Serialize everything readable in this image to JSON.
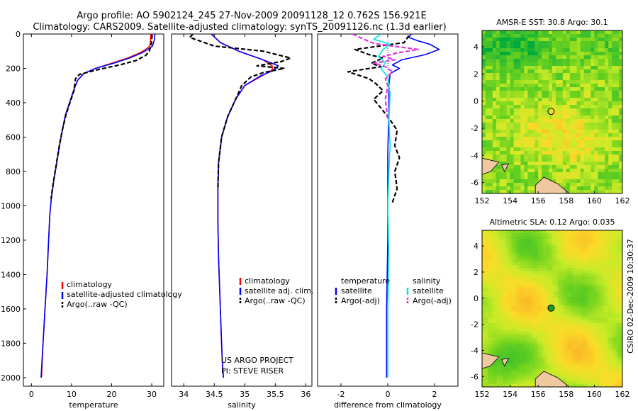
{
  "header": {
    "line1": "Argo profile: AO 5902124_245 27-Nov-2009 20091128_12 0.762S 156.921E",
    "line2": "Climatology: CARS2009. Satellite-adjusted climatology: synTS_20091126.nc (1.3d earlier)"
  },
  "side_label": "CSIRO 02-Dec-2009 10:30:37",
  "colors": {
    "clim": "#ff0000",
    "sat": "#0000ff",
    "argo": "#000000",
    "sat_cyan": "#00e5e5",
    "argo_adj": "#e033e0",
    "land": "#f0c8a0",
    "float_marker": "#1aa01a"
  },
  "chart_data": [
    {
      "type": "line",
      "id": "temperature",
      "title": "",
      "xlabel": "temperature",
      "ylabel": "",
      "xlim": [
        -2,
        33
      ],
      "ylim": [
        0,
        2050
      ],
      "yreverse": true,
      "xticks": [
        0,
        10,
        20,
        30
      ],
      "yticks": [
        0,
        200,
        400,
        600,
        800,
        1000,
        1200,
        1400,
        1600,
        1800,
        2000
      ],
      "legend": {
        "position": "bottom-center",
        "entries": [
          "climatology",
          "satellite-adjusted climatology",
          "Argo(..raw -QC)"
        ]
      },
      "series": [
        {
          "name": "climatology",
          "color": "#ff0000",
          "dash": false,
          "points": [
            [
              29.8,
              0
            ],
            [
              29.7,
              40
            ],
            [
              29.5,
              70
            ],
            [
              28.5,
              90
            ],
            [
              27,
              110
            ],
            [
              24,
              140
            ],
            [
              20,
              170
            ],
            [
              16,
              200
            ],
            [
              13,
              230
            ],
            [
              11.5,
              270
            ],
            [
              10.5,
              330
            ],
            [
              9.5,
              400
            ],
            [
              8.5,
              470
            ],
            [
              7.8,
              550
            ],
            [
              7,
              650
            ],
            [
              6.3,
              750
            ],
            [
              5.6,
              850
            ],
            [
              5,
              950
            ],
            [
              4.6,
              1050
            ],
            [
              4.3,
              1200
            ],
            [
              3.9,
              1400
            ],
            [
              3.4,
              1600
            ],
            [
              2.9,
              1800
            ],
            [
              2.5,
              2000
            ]
          ]
        },
        {
          "name": "satellite-adjusted climatology",
          "color": "#0000ff",
          "dash": false,
          "points": [
            [
              30.8,
              0
            ],
            [
              30.6,
              40
            ],
            [
              30.2,
              70
            ],
            [
              29,
              90
            ],
            [
              27.5,
              110
            ],
            [
              24.5,
              140
            ],
            [
              20.5,
              170
            ],
            [
              16,
              200
            ],
            [
              13,
              230
            ],
            [
              11.5,
              270
            ],
            [
              10.5,
              330
            ],
            [
              9.5,
              400
            ],
            [
              8.5,
              470
            ],
            [
              7.8,
              550
            ],
            [
              7,
              650
            ],
            [
              6.3,
              750
            ],
            [
              5.6,
              850
            ],
            [
              5,
              950
            ],
            [
              4.6,
              1050
            ],
            [
              4.3,
              1200
            ],
            [
              3.9,
              1400
            ],
            [
              3.4,
              1600
            ],
            [
              2.9,
              1800
            ],
            [
              2.4,
              2000
            ]
          ]
        },
        {
          "name": "Argo(..raw -QC)",
          "color": "#000000",
          "dash": true,
          "points": [
            [
              30.1,
              5
            ],
            [
              29.9,
              60
            ],
            [
              29.4,
              100
            ],
            [
              28.5,
              125
            ],
            [
              26,
              155
            ],
            [
              22,
              180
            ],
            [
              17,
              205
            ],
            [
              14.5,
              220
            ],
            [
              12,
              235
            ],
            [
              11,
              260
            ],
            [
              10.6,
              330
            ],
            [
              9.6,
              400
            ],
            [
              8.5,
              480
            ],
            [
              7.7,
              560
            ],
            [
              6.9,
              660
            ],
            [
              6.2,
              760
            ],
            [
              5.5,
              860
            ],
            [
              4.9,
              960
            ]
          ]
        }
      ]
    },
    {
      "type": "line",
      "id": "salinity",
      "title": "",
      "xlabel": "salinity",
      "ylabel": "",
      "xlim": [
        33.8,
        36.1
      ],
      "ylim": [
        0,
        2050
      ],
      "yreverse": true,
      "xticks": [
        34,
        34.5,
        35,
        35.5,
        36
      ],
      "yticks": [],
      "legend": {
        "position": "bottom-center",
        "entries": [
          "climatology",
          "satellite adj. clim.",
          "Argo(..raw -QC)"
        ]
      },
      "annotations": [
        "US ARGO PROJECT",
        "PI: STEVE RISER"
      ],
      "series": [
        {
          "name": "climatology",
          "color": "#ff0000",
          "dash": false,
          "points": [
            [
              34.45,
              0
            ],
            [
              34.6,
              50
            ],
            [
              34.9,
              100
            ],
            [
              35.3,
              150
            ],
            [
              35.45,
              185
            ],
            [
              35.45,
              210
            ],
            [
              35.3,
              240
            ],
            [
              35.0,
              300
            ],
            [
              34.85,
              380
            ],
            [
              34.72,
              480
            ],
            [
              34.62,
              600
            ],
            [
              34.57,
              750
            ],
            [
              34.56,
              900
            ],
            [
              34.56,
              1100
            ],
            [
              34.57,
              1300
            ],
            [
              34.59,
              1500
            ],
            [
              34.61,
              1700
            ],
            [
              34.63,
              1900
            ],
            [
              34.65,
              2000
            ]
          ]
        },
        {
          "name": "satellite adj. clim.",
          "color": "#0000ff",
          "dash": false,
          "points": [
            [
              34.45,
              0
            ],
            [
              34.6,
              50
            ],
            [
              34.9,
              100
            ],
            [
              35.3,
              150
            ],
            [
              35.55,
              185
            ],
            [
              35.45,
              215
            ],
            [
              35.25,
              245
            ],
            [
              35.0,
              300
            ],
            [
              34.85,
              380
            ],
            [
              34.72,
              480
            ],
            [
              34.62,
              600
            ],
            [
              34.57,
              750
            ],
            [
              34.56,
              900
            ],
            [
              34.56,
              1100
            ],
            [
              34.57,
              1300
            ],
            [
              34.59,
              1500
            ],
            [
              34.61,
              1700
            ],
            [
              34.63,
              1900
            ],
            [
              34.65,
              2000
            ]
          ]
        },
        {
          "name": "Argo(..raw -QC)",
          "color": "#000000",
          "dash": true,
          "points": [
            [
              34.15,
              0
            ],
            [
              34.1,
              20
            ],
            [
              34.3,
              45
            ],
            [
              34.5,
              70
            ],
            [
              35.3,
              100
            ],
            [
              35.75,
              140
            ],
            [
              35.6,
              160
            ],
            [
              35.2,
              185
            ],
            [
              35.65,
              200
            ],
            [
              35.3,
              225
            ],
            [
              35.1,
              250
            ],
            [
              34.95,
              300
            ],
            [
              34.85,
              380
            ],
            [
              34.72,
              480
            ],
            [
              34.62,
              600
            ],
            [
              34.57,
              750
            ],
            [
              34.56,
              900
            ]
          ]
        }
      ]
    },
    {
      "type": "line",
      "id": "difference",
      "title": "",
      "xlabel": "difference from climatology",
      "ylabel": "",
      "xlim": [
        -3,
        3
      ],
      "ylim": [
        0,
        2050
      ],
      "yreverse": true,
      "xticks": [
        -2,
        0,
        2
      ],
      "yticks": [],
      "legend": {
        "position": "bottom-center",
        "entries": [
          "temperature",
          "satellite",
          "Argo(-adj)",
          "salinity",
          "satellite",
          "Argo(-adj)"
        ]
      },
      "series": [
        {
          "name": "temperature satellite",
          "color": "#0000ff",
          "dash": false,
          "points": [
            [
              1.0,
              0
            ],
            [
              0.9,
              20
            ],
            [
              1.3,
              40
            ],
            [
              1.8,
              60
            ],
            [
              2.2,
              90
            ],
            [
              1.6,
              120
            ],
            [
              0.6,
              150
            ],
            [
              0.2,
              180
            ],
            [
              0.5,
              200
            ],
            [
              0.1,
              230
            ],
            [
              0.05,
              300
            ],
            [
              0.05,
              450
            ],
            [
              0.0,
              700
            ],
            [
              0.0,
              1200
            ],
            [
              -0.05,
              1600
            ],
            [
              -0.05,
              2000
            ]
          ]
        },
        {
          "name": "temperature Argo(-adj)",
          "color": "#000000",
          "dash": true,
          "points": [
            [
              0.9,
              10
            ],
            [
              0.7,
              50
            ],
            [
              -1.4,
              90
            ],
            [
              -0.8,
              120
            ],
            [
              -0.2,
              140
            ],
            [
              -0.7,
              170
            ],
            [
              -0.3,
              190
            ],
            [
              -1.7,
              220
            ],
            [
              -0.8,
              260
            ],
            [
              -0.5,
              290
            ],
            [
              -0.2,
              330
            ],
            [
              -0.6,
              380
            ],
            [
              -0.3,
              430
            ],
            [
              0.1,
              500
            ],
            [
              0.4,
              560
            ],
            [
              0.3,
              650
            ],
            [
              0.5,
              720
            ],
            [
              0.3,
              800
            ],
            [
              0.4,
              900
            ],
            [
              0.2,
              980
            ]
          ]
        },
        {
          "name": "salinity satellite",
          "color": "#00e5e5",
          "dash": false,
          "points": [
            [
              -0.3,
              0
            ],
            [
              -0.6,
              30
            ],
            [
              0.1,
              60
            ],
            [
              -0.2,
              90
            ],
            [
              -0.4,
              130
            ],
            [
              -0.1,
              170
            ],
            [
              -0.3,
              200
            ],
            [
              0.0,
              250
            ],
            [
              0.1,
              350
            ],
            [
              0.05,
              500
            ],
            [
              0.1,
              650
            ],
            [
              0.05,
              800
            ],
            [
              0.0,
              1000
            ],
            [
              0.05,
              1300
            ],
            [
              0.0,
              1600
            ],
            [
              0.0,
              2000
            ]
          ]
        },
        {
          "name": "salinity Argo(-adj)",
          "color": "#e033e0",
          "dash": true,
          "points": [
            [
              -1.5,
              0
            ],
            [
              -1.2,
              20
            ],
            [
              -0.6,
              55
            ],
            [
              1.3,
              90
            ],
            [
              0.4,
              110
            ],
            [
              -0.2,
              130
            ],
            [
              0.3,
              150
            ],
            [
              -0.6,
              170
            ],
            [
              -0.1,
              190
            ],
            [
              0.2,
              220
            ],
            [
              -0.1,
              260
            ],
            [
              0.0,
              300
            ],
            [
              -0.1,
              380
            ],
            [
              0.0,
              500
            ]
          ]
        }
      ]
    },
    {
      "type": "heatmap",
      "id": "sst_map",
      "title": "AMSR-E SST: 30.8 Argo: 30.1",
      "xlabel": "",
      "ylabel": "",
      "xlim": [
        152,
        162
      ],
      "ylim": [
        -6.8,
        5.2
      ],
      "xticks": [
        152,
        154,
        156,
        158,
        160,
        162
      ],
      "yticks": [
        4,
        2,
        0,
        -2,
        -4,
        -6
      ],
      "float_position": [
        156.92,
        -0.76
      ]
    },
    {
      "type": "heatmap",
      "id": "sla_map",
      "title": "Altimetric SLA: 0.12 Argo: 0.035",
      "xlabel": "",
      "ylabel": "",
      "xlim": [
        152,
        162
      ],
      "ylim": [
        -6.8,
        5.2
      ],
      "xticks": [
        152,
        154,
        156,
        158,
        160,
        162
      ],
      "yticks": [
        4,
        2,
        0,
        -2,
        -4,
        -6
      ],
      "float_position": [
        156.92,
        -0.76
      ]
    }
  ]
}
